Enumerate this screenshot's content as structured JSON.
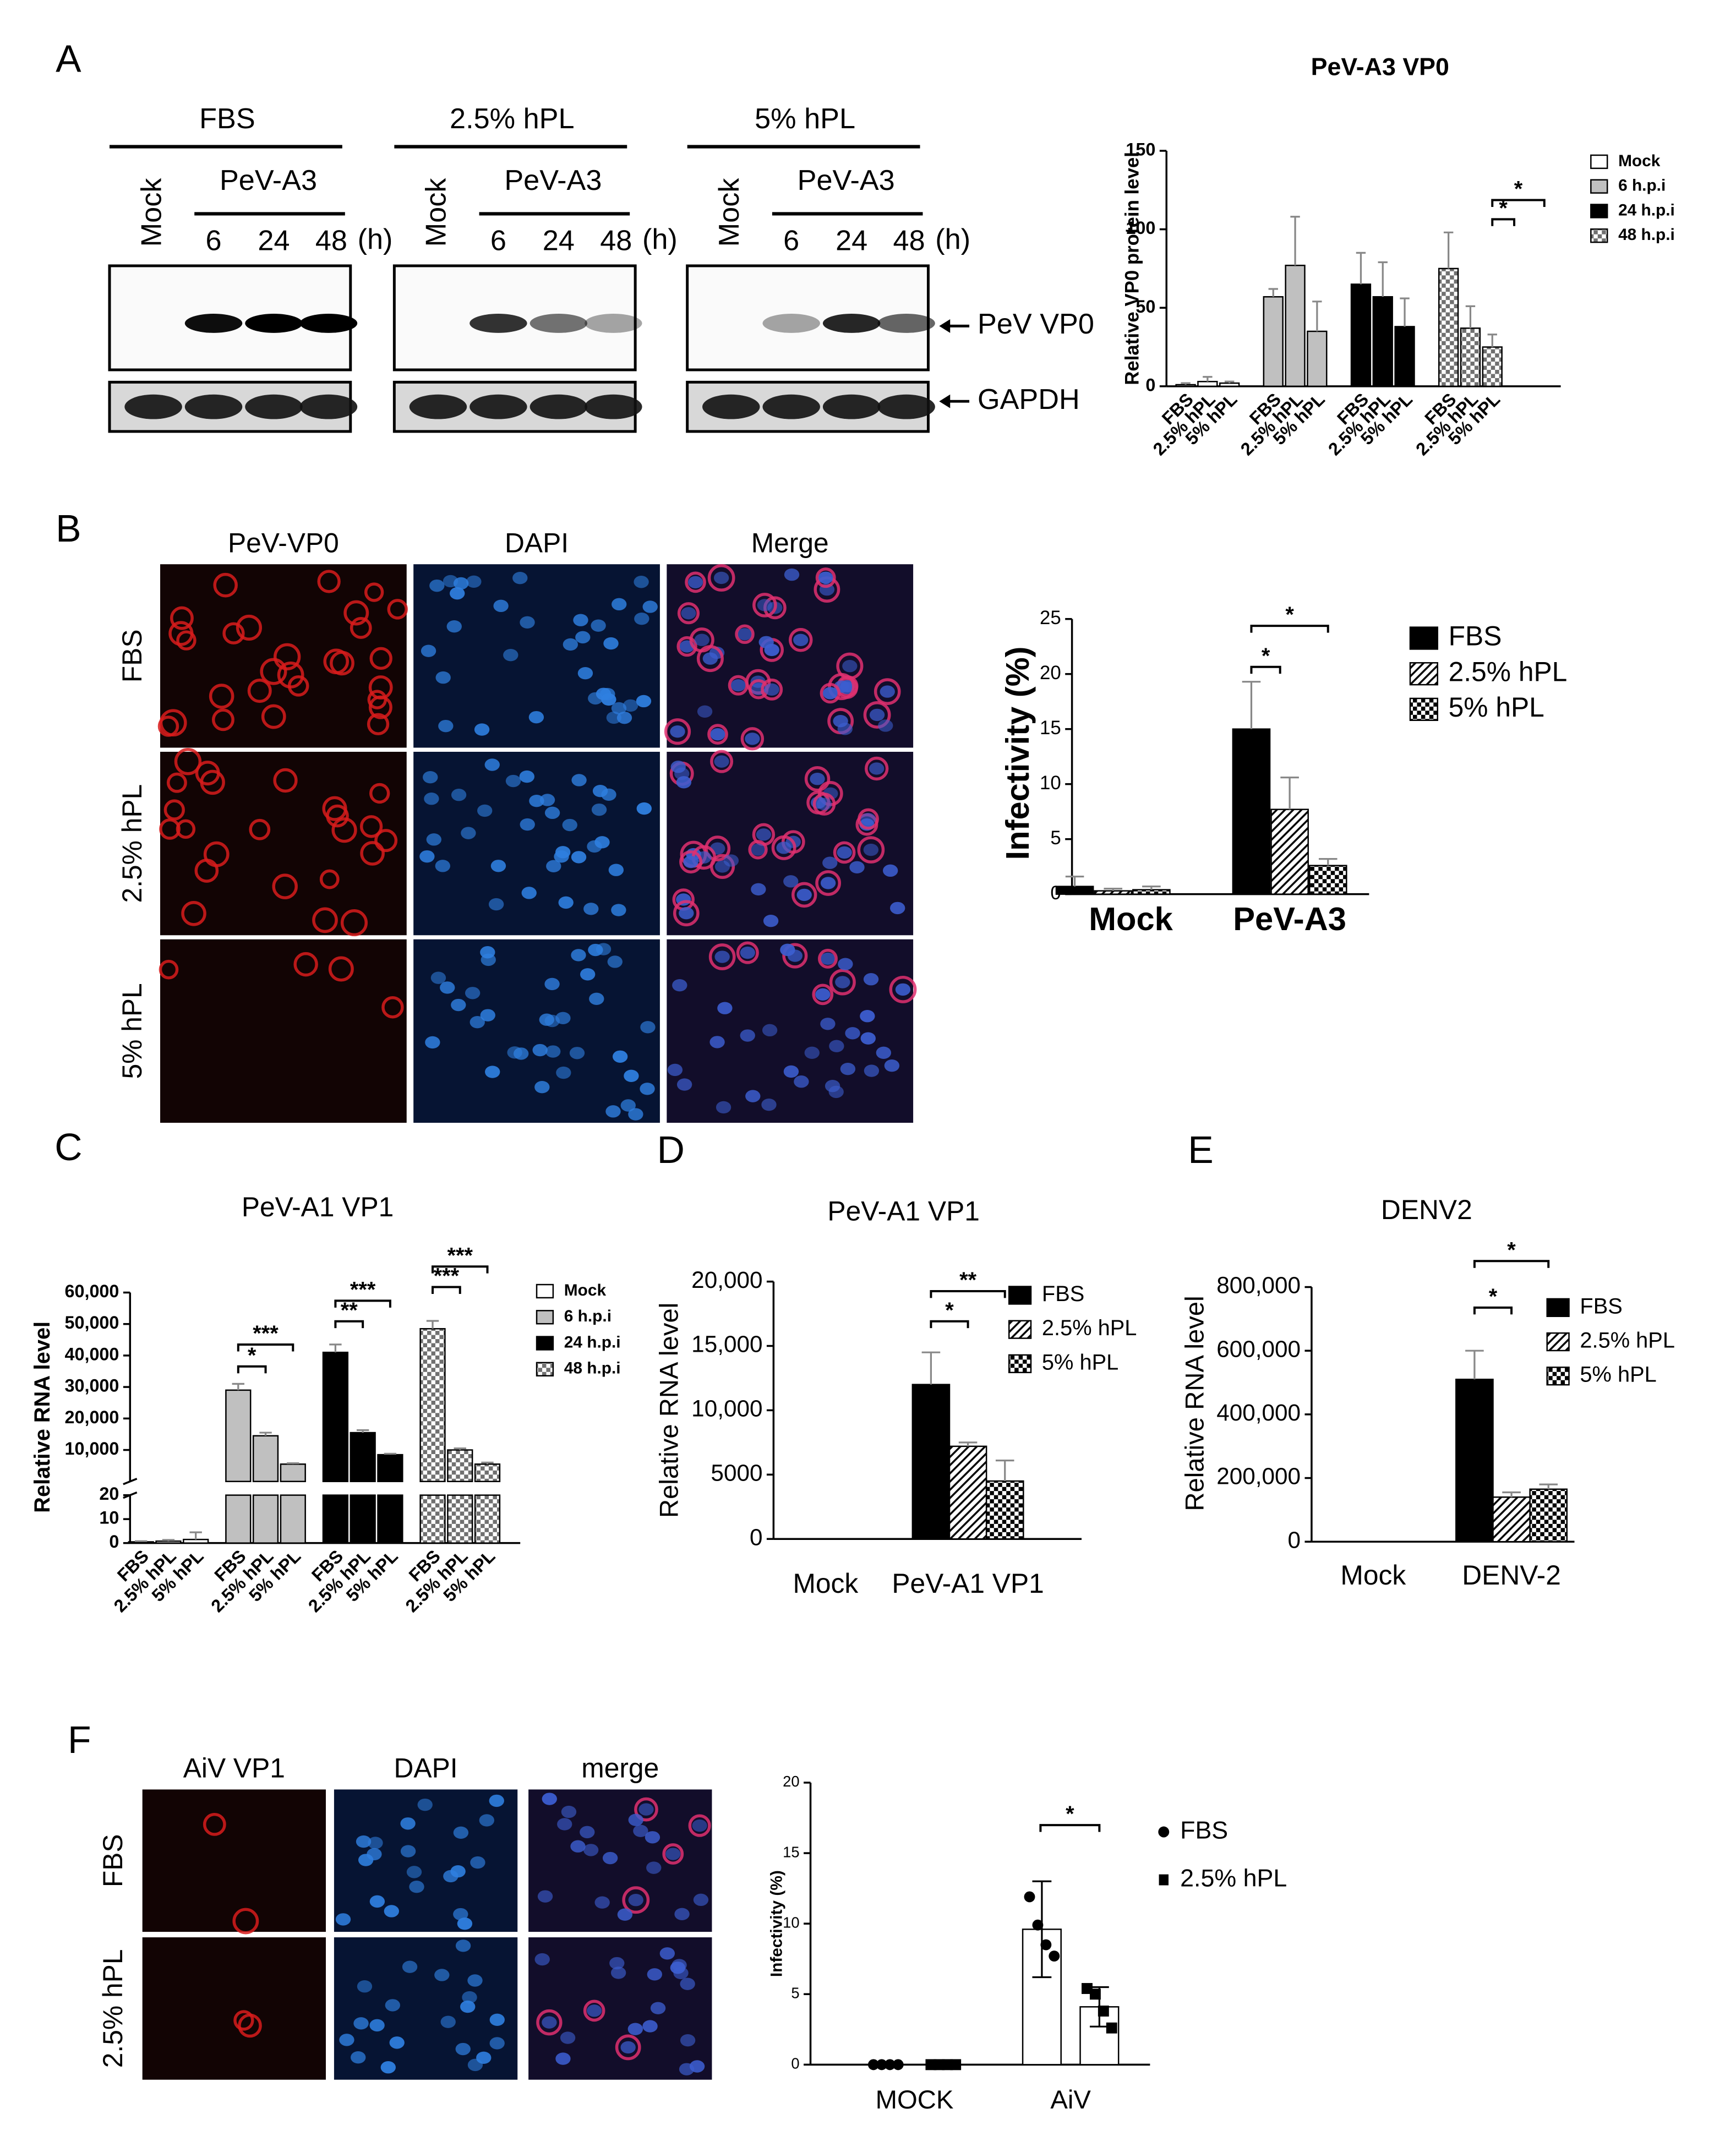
{
  "panel_labels": [
    "A",
    "B",
    "C",
    "D",
    "E",
    "F"
  ],
  "blot": {
    "groups": [
      {
        "title": "FBS",
        "mock": "Mock",
        "virus": "PeV-A3",
        "times": [
          "6",
          "24",
          "48"
        ],
        "unit": "(h)"
      },
      {
        "title": "2.5% hPL",
        "mock": "Mock",
        "virus": "PeV-A3",
        "times": [
          "6",
          "24",
          "48"
        ],
        "unit": "(h)"
      },
      {
        "title": "5% hPL",
        "mock": "Mock",
        "virus": "PeV-A3",
        "times": [
          "6",
          "24",
          "48"
        ],
        "unit": "(h)"
      }
    ],
    "bands": [
      "PeV VP0",
      "GAPDH"
    ]
  },
  "if_b": {
    "columns": [
      "PeV-VP0",
      "DAPI",
      "Merge"
    ],
    "rows": [
      "FBS",
      "2.5% hPL",
      "5% hPL"
    ]
  },
  "if_f": {
    "columns": [
      "AiV VP1",
      "DAPI",
      "merge"
    ],
    "rows": [
      "FBS",
      "2.5% hPL"
    ]
  },
  "chart_data": [
    {
      "type": "bar",
      "title": "PeV-A3 VP0",
      "y_label": "Relative VP0 protein level",
      "categories": [
        "FBS",
        "2.5% hPL",
        "5% hPL"
      ],
      "series": [
        {
          "name": "Mock",
          "color": "#ffffff",
          "values": [
            1,
            3,
            2
          ],
          "errors": [
            1,
            3,
            1
          ]
        },
        {
          "name": "6 h.p.i",
          "color": "#c0c0c0",
          "values": [
            57,
            77,
            35
          ],
          "errors": [
            5,
            31,
            19
          ]
        },
        {
          "name": "24 h.p.i",
          "color": "#000000",
          "values": [
            65,
            57,
            38
          ],
          "errors": [
            20,
            22,
            18
          ]
        },
        {
          "name": "48 h.p.i",
          "color": "#707070",
          "pattern": "checker",
          "values": [
            75,
            37,
            25
          ],
          "errors": [
            23,
            14,
            8
          ]
        }
      ],
      "ylim": [
        0,
        150
      ],
      "yticks": [
        0,
        50,
        100,
        150
      ],
      "significance": [
        "*",
        "*"
      ]
    },
    {
      "type": "bar",
      "y_label": "Infectivity (%)",
      "categories": [
        "Mock",
        "PeV-A3"
      ],
      "series": [
        {
          "name": "FBS",
          "color": "#000000",
          "values": [
            0.7,
            15
          ],
          "errors": [
            0.9,
            4.3
          ]
        },
        {
          "name": "2.5% hPL",
          "color": "#000000",
          "pattern": "hatch",
          "values": [
            0.3,
            7.7
          ],
          "errors": [
            0.2,
            2.9
          ]
        },
        {
          "name": "5% hPL",
          "color": "#000000",
          "pattern": "checker",
          "values": [
            0.4,
            2.6
          ],
          "errors": [
            0.3,
            0.6
          ]
        }
      ],
      "ylim": [
        0,
        25
      ],
      "yticks": [
        0,
        5,
        10,
        15,
        20,
        25
      ],
      "significance": [
        "*",
        "*"
      ]
    },
    {
      "type": "bar",
      "title": "PeV-A1 VP1",
      "y_label": "Relative RNA level",
      "categories": [
        "FBS",
        "2.5% hPL",
        "5% hPL"
      ],
      "series": [
        {
          "name": "Mock",
          "color": "#ffffff",
          "values": [
            0.5,
            0.8,
            1.5
          ],
          "errors": [
            0.3,
            0.5,
            3
          ]
        },
        {
          "name": "6 h.p.i",
          "color": "#c0c0c0",
          "values": [
            29000,
            14500,
            5500
          ],
          "errors": [
            2000,
            1000,
            300
          ]
        },
        {
          "name": "24 h.p.i",
          "color": "#000000",
          "values": [
            41000,
            15500,
            8500
          ],
          "errors": [
            2500,
            800,
            300
          ]
        },
        {
          "name": "48 h.p.i",
          "color": "#707070",
          "pattern": "checker",
          "values": [
            48500,
            10000,
            5500
          ],
          "errors": [
            2500,
            500,
            500
          ]
        }
      ],
      "ylim": [
        0,
        60000
      ],
      "yticks": [
        {
          "value": 10000,
          "label": "10,000"
        },
        {
          "value": 20000,
          "label": "20,000"
        },
        {
          "value": 30000,
          "label": "30,000"
        },
        {
          "value": 40000,
          "label": "40,000"
        },
        {
          "value": 50000,
          "label": "50,000"
        },
        {
          "value": 60000,
          "label": "60,000"
        }
      ],
      "lower_ylim": [
        0,
        20
      ],
      "lower_yticks": [
        0,
        10,
        20
      ],
      "significance": [
        "*",
        "***",
        "**",
        "***",
        "***",
        "***"
      ]
    },
    {
      "type": "bar",
      "title": "PeV-A1 VP1",
      "y_label": "Relative RNA level",
      "categories": [
        "Mock",
        "PeV-A1 VP1"
      ],
      "series": [
        {
          "name": "FBS",
          "color": "#000000",
          "values": [
            0,
            12000
          ],
          "errors": [
            0,
            2500
          ]
        },
        {
          "name": "2.5% hPL",
          "color": "#000000",
          "pattern": "hatch",
          "values": [
            0,
            7200
          ],
          "errors": [
            0,
            300
          ]
        },
        {
          "name": "5% hPL",
          "color": "#000000",
          "pattern": "checker",
          "values": [
            0,
            4500
          ],
          "errors": [
            0,
            1600
          ]
        }
      ],
      "ylim": [
        0,
        20000
      ],
      "yticks": [
        0,
        5000,
        {
          "value": 10000,
          "label": "10,000"
        },
        {
          "value": 15000,
          "label": "15,000"
        },
        {
          "value": 20000,
          "label": "20,000"
        }
      ],
      "significance": [
        "*",
        "**"
      ]
    },
    {
      "type": "bar",
      "title": "DENV2",
      "y_label": "Relative RNA level",
      "categories": [
        "Mock",
        "DENV-2"
      ],
      "series": [
        {
          "name": "FBS",
          "color": "#000000",
          "values": [
            0,
            510000
          ],
          "errors": [
            0,
            90000
          ]
        },
        {
          "name": "2.5% hPL",
          "color": "#000000",
          "pattern": "hatch",
          "values": [
            0,
            140000
          ],
          "errors": [
            0,
            15000
          ]
        },
        {
          "name": "5% hPL",
          "color": "#000000",
          "pattern": "checker",
          "values": [
            0,
            165000
          ],
          "errors": [
            0,
            15000
          ]
        }
      ],
      "ylim": [
        0,
        800000
      ],
      "yticks": [
        0,
        {
          "value": 200000,
          "label": "200,000"
        },
        {
          "value": 400000,
          "label": "400,000"
        },
        {
          "value": 600000,
          "label": "600,000"
        },
        {
          "value": 800000,
          "label": "800,000"
        }
      ],
      "significance": [
        "*",
        "*"
      ]
    },
    {
      "type": "bar",
      "y_label": "Infectivity (%)",
      "categories": [
        "MOCK",
        "AiV"
      ],
      "bar_color": "#ffffff",
      "series": [
        {
          "name": "FBS",
          "color": "#000000",
          "marker": "circle",
          "values": [
            0,
            9.6
          ],
          "errors": [
            0,
            3.4
          ],
          "points": [
            [
              0,
              0,
              0,
              0
            ],
            [
              11.9,
              9.9,
              8.5,
              7.7
            ]
          ]
        },
        {
          "name": "2.5% hPL",
          "color": "#000000",
          "marker": "square",
          "values": [
            0,
            4.1
          ],
          "errors": [
            0,
            1.4
          ],
          "points": [
            [
              0,
              0,
              0,
              0
            ],
            [
              5.4,
              5,
              3.8,
              2.6
            ]
          ]
        }
      ],
      "ylim": [
        0,
        20
      ],
      "yticks": [
        0,
        5,
        10,
        15,
        20
      ],
      "significance": [
        "*"
      ]
    }
  ]
}
